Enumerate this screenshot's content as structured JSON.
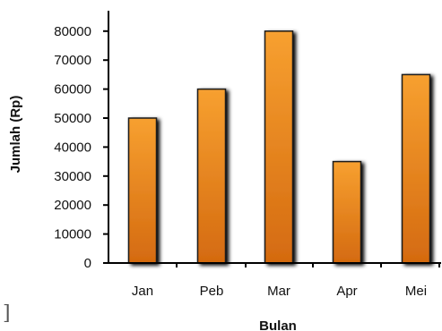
{
  "chart_data": {
    "type": "bar",
    "categories": [
      "Jan",
      "Peb",
      "Mar",
      "Apr",
      "Mei"
    ],
    "values": [
      50000,
      60000,
      80000,
      35000,
      65000
    ],
    "title": "",
    "xlabel": "Bulan",
    "ylabel": "Jumlah (Rp)",
    "ylim": [
      0,
      85000
    ],
    "yticks": [
      "0",
      "10000",
      "20000",
      "30000",
      "40000",
      "50000",
      "60000",
      "70000",
      "80000"
    ],
    "grid": false,
    "legend": "none",
    "colors": {
      "bar_light": "#f7a030",
      "bar_dark": "#d46a10",
      "bar_border": "#1a1a1a",
      "axis": "#000000"
    }
  },
  "stray_mark": "]"
}
